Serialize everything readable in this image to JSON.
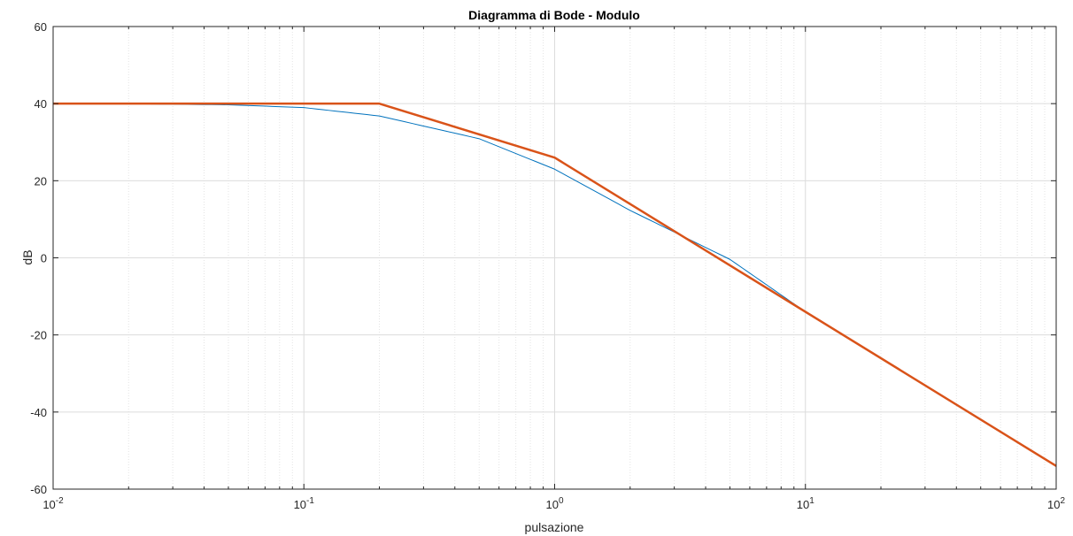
{
  "chart_data": {
    "type": "line",
    "title": "Diagramma di Bode - Modulo",
    "xlabel": "pulsazione",
    "ylabel": "dB",
    "xscale": "log",
    "xlim": [
      0.01,
      100
    ],
    "ylim": [
      -60,
      60
    ],
    "grid": true,
    "minor_grid": true,
    "x_ticks": [
      {
        "base": "10",
        "exp": "-2",
        "value": 0.01
      },
      {
        "base": "10",
        "exp": "-1",
        "value": 0.1
      },
      {
        "base": "10",
        "exp": "0",
        "value": 1
      },
      {
        "base": "10",
        "exp": "1",
        "value": 10
      },
      {
        "base": "10",
        "exp": "2",
        "value": 100
      }
    ],
    "y_ticks": [
      "60",
      "40",
      "20",
      "0",
      "-20",
      "-40",
      "-60"
    ],
    "series": [
      {
        "color": "#0072BD",
        "style": "thin",
        "x": [
          0.01,
          0.02,
          0.05,
          0.1,
          0.2,
          0.5,
          1,
          2,
          5,
          10,
          20,
          50,
          100
        ],
        "y": [
          40.0,
          39.96,
          39.7,
          38.97,
          36.8,
          30.9,
          23.0,
          12.3,
          -0.4,
          -14.0,
          -26.0,
          -42.0,
          -54.0
        ]
      },
      {
        "color": "#D95319",
        "style": "thick",
        "x": [
          0.01,
          0.2,
          1,
          100
        ],
        "y": [
          40,
          40,
          26,
          -54
        ]
      }
    ]
  }
}
